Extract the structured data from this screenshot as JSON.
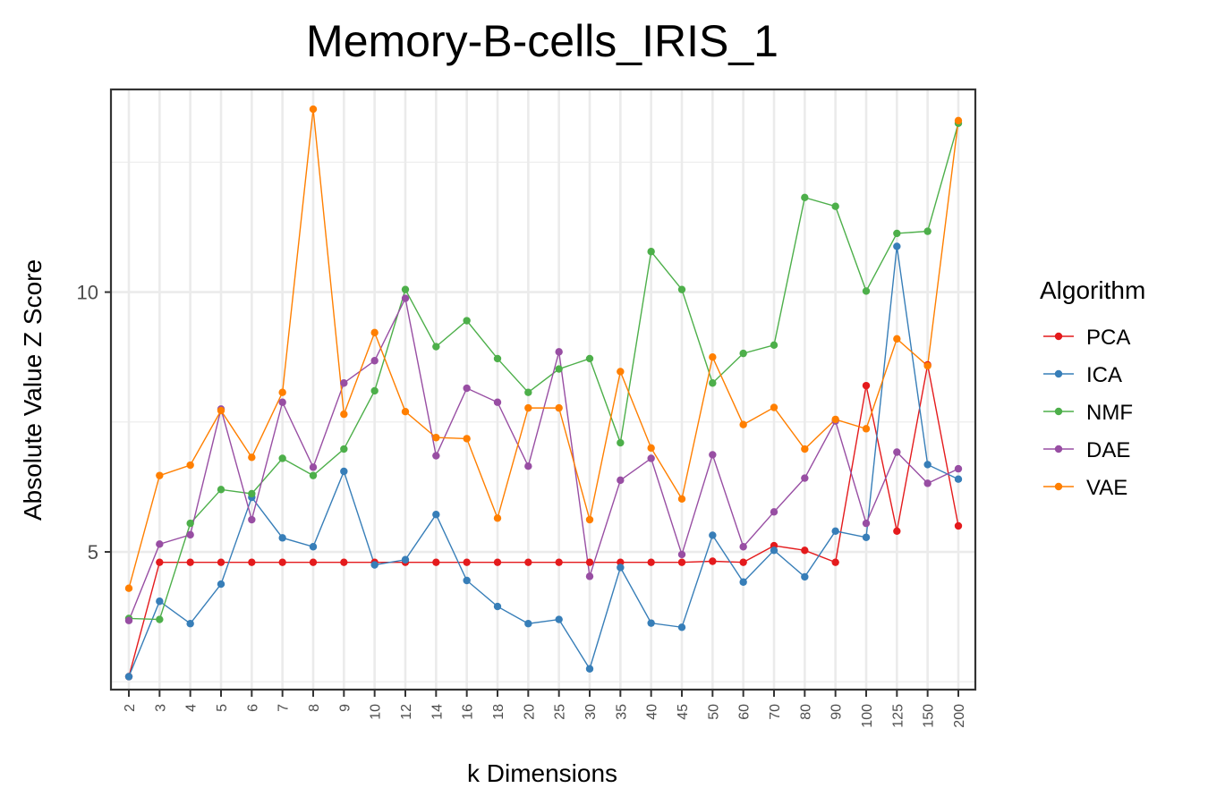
{
  "chart_data": {
    "type": "line",
    "title": "Memory-B-cells_IRIS_1",
    "xlabel": "k Dimensions",
    "ylabel": "Absolute Value Z Score",
    "categories": [
      "2",
      "3",
      "4",
      "5",
      "6",
      "7",
      "8",
      "9",
      "10",
      "12",
      "14",
      "16",
      "18",
      "20",
      "25",
      "30",
      "35",
      "40",
      "45",
      "50",
      "60",
      "70",
      "80",
      "90",
      "100",
      "125",
      "150",
      "200"
    ],
    "ylim": [
      2.35,
      13.9
    ],
    "yticks": [
      5,
      10
    ],
    "yminor": [
      2.5,
      7.5,
      12.5
    ],
    "grid": true,
    "legend_title": "Algorithm",
    "legend_position": "right",
    "series": [
      {
        "name": "PCA",
        "color": "#e41a1c",
        "values": [
          2.6,
          4.8,
          4.8,
          4.8,
          4.8,
          4.8,
          4.8,
          4.8,
          4.8,
          4.8,
          4.8,
          4.8,
          4.8,
          4.8,
          4.8,
          4.8,
          4.8,
          4.8,
          4.8,
          4.82,
          4.8,
          5.12,
          5.03,
          4.8,
          8.2,
          5.4,
          8.6,
          5.5
        ]
      },
      {
        "name": "ICA",
        "color": "#377eb8",
        "values": [
          2.6,
          4.05,
          3.62,
          4.38,
          6.05,
          5.27,
          5.1,
          6.55,
          4.75,
          4.85,
          5.72,
          4.45,
          3.95,
          3.62,
          3.7,
          2.75,
          4.7,
          3.63,
          3.55,
          5.32,
          4.42,
          5.03,
          4.52,
          5.4,
          5.28,
          10.88,
          6.68,
          6.4
        ]
      },
      {
        "name": "NMF",
        "color": "#4daf4a",
        "values": [
          3.72,
          3.7,
          5.55,
          6.2,
          6.12,
          6.8,
          6.47,
          6.98,
          8.1,
          10.05,
          8.95,
          9.45,
          8.72,
          8.07,
          8.52,
          8.72,
          7.1,
          10.78,
          10.05,
          8.25,
          8.82,
          8.98,
          11.82,
          11.65,
          10.02,
          11.13,
          11.17,
          13.25
        ]
      },
      {
        "name": "DAE",
        "color": "#984ea3",
        "values": [
          3.68,
          5.15,
          5.33,
          7.75,
          5.62,
          7.88,
          6.63,
          8.25,
          8.68,
          9.88,
          6.85,
          8.15,
          7.88,
          6.65,
          8.85,
          4.53,
          6.38,
          6.8,
          4.95,
          6.87,
          5.1,
          5.77,
          6.42,
          7.52,
          5.55,
          6.92,
          6.32,
          6.6
        ]
      },
      {
        "name": "VAE",
        "color": "#ff7f00",
        "values": [
          4.3,
          6.47,
          6.67,
          7.72,
          6.82,
          8.07,
          13.52,
          7.65,
          9.22,
          7.7,
          7.2,
          7.18,
          5.65,
          7.77,
          7.77,
          5.62,
          8.47,
          7.0,
          6.02,
          8.75,
          7.45,
          7.78,
          6.98,
          7.55,
          7.37,
          9.1,
          8.58,
          13.3
        ]
      }
    ]
  }
}
